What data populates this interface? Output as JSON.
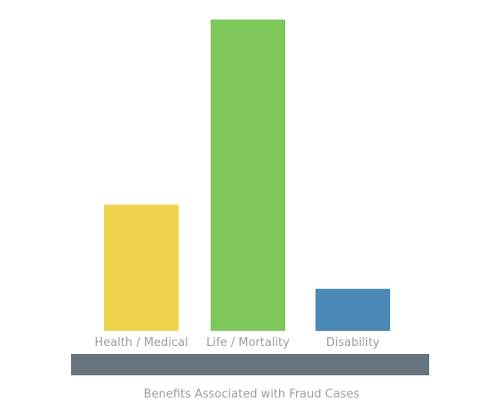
{
  "chart_data": {
    "type": "bar",
    "title": "Benefits Associated with Fraud Cases",
    "xlabel": "",
    "ylabel": "",
    "categories": [
      "Health / Medical",
      "Life / Mortality",
      "Disability"
    ],
    "values": [
      40.5,
      100,
      13.5
    ],
    "ylim": [
      0,
      100
    ],
    "bar_colors": [
      "#efd24c",
      "#7ec85a",
      "#4b8ab6"
    ],
    "baseline_color": "#68747e",
    "grid": false,
    "legend": "none",
    "value_labels_shown": false
  }
}
